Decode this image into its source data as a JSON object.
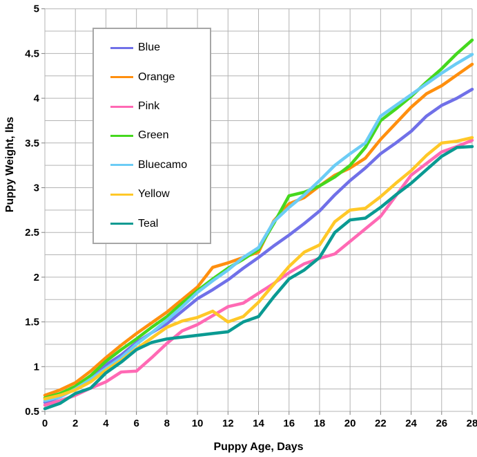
{
  "chart_data": {
    "type": "line",
    "title": "",
    "xlabel": "Puppy Age, Days",
    "ylabel": "Puppy Weight, lbs",
    "xlim": [
      0,
      28
    ],
    "ylim": [
      0.5,
      5
    ],
    "grid": true,
    "legend_position": "upper-left-inside",
    "x_ticks": [
      0,
      2,
      4,
      6,
      8,
      10,
      12,
      14,
      16,
      18,
      20,
      22,
      24,
      26,
      28
    ],
    "y_ticks": [
      0.5,
      1,
      1.5,
      2,
      2.5,
      3,
      3.5,
      4,
      4.5,
      5
    ],
    "y_minor_step": 0.25,
    "x": [
      0,
      1,
      2,
      3,
      4,
      5,
      6,
      7,
      8,
      9,
      10,
      11,
      12,
      13,
      14,
      15,
      16,
      17,
      18,
      19,
      20,
      21,
      22,
      23,
      24,
      25,
      26,
      27,
      28
    ],
    "series": [
      {
        "name": "Blue",
        "color": "#7070e8",
        "values": [
          0.6,
          0.66,
          0.77,
          0.87,
          1.02,
          1.13,
          1.27,
          1.38,
          1.48,
          1.62,
          1.76,
          1.86,
          1.97,
          2.1,
          2.22,
          2.35,
          2.47,
          2.6,
          2.74,
          2.92,
          3.08,
          3.22,
          3.38,
          3.5,
          3.63,
          3.8,
          3.92,
          4.0,
          4.1
        ]
      },
      {
        "name": "Orange",
        "color": "#ff8f0e",
        "values": [
          0.68,
          0.74,
          0.82,
          0.95,
          1.1,
          1.24,
          1.37,
          1.49,
          1.61,
          1.75,
          1.89,
          2.11,
          2.16,
          2.22,
          2.28,
          2.63,
          2.82,
          2.89,
          3.02,
          3.14,
          3.22,
          3.33,
          3.54,
          3.72,
          3.9,
          4.05,
          4.14,
          4.26,
          4.38
        ]
      },
      {
        "name": "Pink",
        "color": "#ff69b4",
        "values": [
          0.57,
          0.62,
          0.68,
          0.76,
          0.83,
          0.94,
          0.95,
          1.1,
          1.26,
          1.4,
          1.47,
          1.57,
          1.67,
          1.71,
          1.82,
          1.93,
          2.05,
          2.15,
          2.21,
          2.26,
          2.4,
          2.54,
          2.68,
          2.91,
          3.14,
          3.27,
          3.4,
          3.46,
          3.53
        ]
      },
      {
        "name": "Green",
        "color": "#45d81e",
        "values": [
          0.65,
          0.7,
          0.78,
          0.9,
          1.06,
          1.19,
          1.31,
          1.44,
          1.56,
          1.71,
          1.85,
          1.98,
          2.1,
          2.2,
          2.31,
          2.6,
          2.91,
          2.95,
          3.02,
          3.12,
          3.25,
          3.45,
          3.75,
          3.88,
          4.02,
          4.18,
          4.33,
          4.5,
          4.65
        ]
      },
      {
        "name": "Bluecamo",
        "color": "#6cccf5",
        "values": [
          0.62,
          0.66,
          0.75,
          0.86,
          0.98,
          1.1,
          1.25,
          1.38,
          1.52,
          1.67,
          1.83,
          1.96,
          2.08,
          2.22,
          2.33,
          2.62,
          2.78,
          2.92,
          3.08,
          3.25,
          3.38,
          3.5,
          3.8,
          3.92,
          4.04,
          4.16,
          4.28,
          4.39,
          4.49
        ]
      },
      {
        "name": "Yellow",
        "color": "#ffc828",
        "values": [
          0.64,
          0.68,
          0.74,
          0.83,
          0.96,
          1.07,
          1.2,
          1.32,
          1.44,
          1.51,
          1.55,
          1.62,
          1.5,
          1.56,
          1.72,
          1.92,
          2.12,
          2.28,
          2.36,
          2.62,
          2.75,
          2.77,
          2.9,
          3.05,
          3.19,
          3.36,
          3.5,
          3.52,
          3.56
        ]
      },
      {
        "name": "Teal",
        "color": "#0a9a92",
        "values": [
          0.53,
          0.59,
          0.7,
          0.76,
          0.93,
          1.05,
          1.19,
          1.27,
          1.31,
          1.33,
          1.35,
          1.37,
          1.39,
          1.5,
          1.56,
          1.78,
          1.98,
          2.08,
          2.22,
          2.5,
          2.64,
          2.66,
          2.78,
          2.92,
          3.05,
          3.2,
          3.35,
          3.45,
          3.46
        ]
      }
    ],
    "colors": {
      "background": "#ffffff",
      "gridline": "#b3b3b3",
      "tick": "#808080",
      "text": "#000000",
      "legend_border": "#a6a6a6"
    }
  }
}
